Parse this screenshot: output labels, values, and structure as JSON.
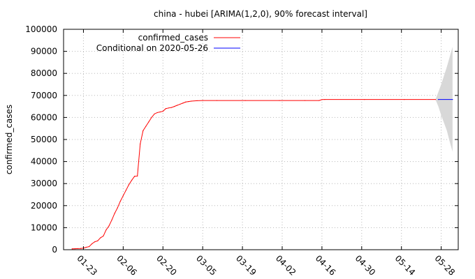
{
  "chart_data": {
    "type": "line",
    "title": "china - hubei [ARIMA(1,2,0), 90% forecast interval]",
    "xlabel": "",
    "ylabel": "confirmed_cases",
    "x_is_date": true,
    "year": 2020,
    "xlim": [
      "2020-01-16",
      "2020-06-03"
    ],
    "ylim": [
      0,
      100000
    ],
    "yticks": [
      0,
      10000,
      20000,
      30000,
      40000,
      50000,
      60000,
      70000,
      80000,
      90000,
      100000
    ],
    "xticks": [
      "2020-01-23",
      "2020-02-06",
      "2020-02-20",
      "2020-03-05",
      "2020-03-19",
      "2020-04-02",
      "2020-04-16",
      "2020-04-30",
      "2020-05-14",
      "2020-05-28"
    ],
    "xtick_labels": [
      "01-23",
      "02-06",
      "02-20",
      "03-05",
      "03-19",
      "04-02",
      "04-16",
      "04-30",
      "05-14",
      "05-28"
    ],
    "grid": true,
    "legend_position": "top-left",
    "series": [
      {
        "name": "confirmed_cases",
        "color": "#ff0000",
        "x": [
          "2020-01-19",
          "2020-01-20",
          "2020-01-21",
          "2020-01-22",
          "2020-01-23",
          "2020-01-24",
          "2020-01-25",
          "2020-01-26",
          "2020-01-27",
          "2020-01-28",
          "2020-01-29",
          "2020-01-30",
          "2020-01-31",
          "2020-02-01",
          "2020-02-02",
          "2020-02-03",
          "2020-02-04",
          "2020-02-05",
          "2020-02-06",
          "2020-02-07",
          "2020-02-08",
          "2020-02-09",
          "2020-02-10",
          "2020-02-11",
          "2020-02-12",
          "2020-02-13",
          "2020-02-14",
          "2020-02-15",
          "2020-02-16",
          "2020-02-17",
          "2020-02-18",
          "2020-02-19",
          "2020-02-20",
          "2020-02-21",
          "2020-02-22",
          "2020-02-23",
          "2020-02-24",
          "2020-02-25",
          "2020-02-26",
          "2020-02-27",
          "2020-02-28",
          "2020-02-29",
          "2020-03-01",
          "2020-03-03",
          "2020-03-05",
          "2020-03-10",
          "2020-03-20",
          "2020-04-01",
          "2020-04-10",
          "2020-04-15",
          "2020-04-16",
          "2020-04-17",
          "2020-05-01",
          "2020-05-15",
          "2020-05-26"
        ],
        "values": [
          400,
          450,
          500,
          550,
          700,
          1100,
          1400,
          2700,
          3600,
          4000,
          5400,
          6200,
          9000,
          10800,
          13500,
          16500,
          19000,
          22000,
          24500,
          27000,
          29500,
          31500,
          33300,
          33400,
          48000,
          54000,
          56000,
          58000,
          60000,
          61600,
          62200,
          62500,
          62800,
          64000,
          64300,
          64500,
          65000,
          65500,
          66000,
          66500,
          67000,
          67200,
          67400,
          67600,
          67700,
          67700,
          67700,
          67700,
          67700,
          67700,
          68100,
          68150,
          68150,
          68150,
          68150
        ]
      },
      {
        "name": "Conditional on 2020-05-26",
        "color": "#0000ff",
        "x": [
          "2020-05-27",
          "2020-06-01"
        ],
        "values": [
          68150,
          68150
        ]
      }
    ],
    "forecast_interval": {
      "color": "#d8d8d8",
      "x": [
        "2020-05-26",
        "2020-05-27",
        "2020-05-28",
        "2020-05-29",
        "2020-05-30",
        "2020-05-31",
        "2020-06-01"
      ],
      "lower": [
        68150,
        65000,
        61000,
        57500,
        54000,
        49000,
        44500
      ],
      "upper": [
        68150,
        71500,
        75000,
        79000,
        83000,
        87500,
        92000
      ]
    }
  }
}
